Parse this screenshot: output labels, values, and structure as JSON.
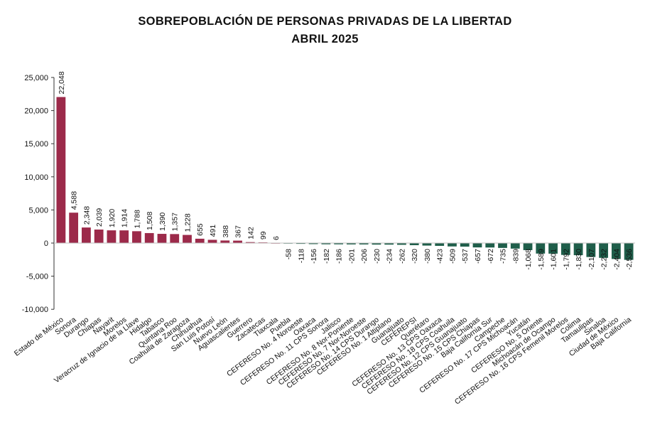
{
  "colors": {
    "positive": "#9c2a4a",
    "negative": "#1f5e4a",
    "axis": "#333333",
    "text": "#111111"
  },
  "chart_data": {
    "type": "bar",
    "title": "SOBREPOBLACIÓN DE PERSONAS PRIVADAS DE LA LIBERTAD",
    "subtitle": "ABRIL 2025",
    "xlabel": "",
    "ylabel": "",
    "ylim": [
      -10000,
      25000
    ],
    "yticks": [
      -10000,
      -5000,
      0,
      5000,
      10000,
      15000,
      20000,
      25000
    ],
    "ytick_labels": [
      "-10,000",
      "-5,000",
      "0",
      "5,000",
      "10,000",
      "15,000",
      "20,000",
      "25,000"
    ],
    "grid": false,
    "legend": "none",
    "categories": [
      "Estado de México",
      "Sonora",
      "Durango",
      "Chiapas",
      "Nayarit",
      "Morelos",
      "Veracruz de Ignacio de la Llave",
      "Hidalgo",
      "Tabasco",
      "Quintana Roo",
      "Coahuila de Zaragoza",
      "Chihuahua",
      "San Luis Potosí",
      "Nuevo León",
      "Aguascalientes",
      "Guerrero",
      "Zacatecas",
      "Tlaxcala",
      "Puebla",
      "CEFERESO No. 4 Noroeste",
      "Oaxaca",
      "CEFERESO No. 11 CPS Sonora",
      "Jalisco",
      "CEFERESO No. 8 Nor-Poniente",
      "CEFERESO No. 7 Nor-Noroeste",
      "CEFERESO No. 14 CPS Durango",
      "CEFERESO No. 1 Altiplano",
      "Guanajuato",
      "CEFEREPSI",
      "Querétaro",
      "CEFERESO No. 13 CPS Oaxaca",
      "CEFERESO No. 18 CPS Coahuila",
      "CEFERESO No. 12 CPS Guanajuato",
      "CEFERESO No. 15 CPS Chiapas",
      "Baja California Sur",
      "Campeche",
      "CEFERESO No. 17 CPS Michoacán",
      "Yucatán",
      "CEFERESO No. 5 Oriente",
      "Michoacán de Ocampo",
      "CEFERESO No. 16 CPS Femenil Morelos",
      "Colima",
      "Tamaulipas",
      "Sinaloa",
      "Ciudad de México",
      "Baja California"
    ],
    "values": [
      22048,
      4588,
      2348,
      2039,
      1920,
      1914,
      1788,
      1508,
      1390,
      1357,
      1228,
      655,
      491,
      388,
      367,
      142,
      99,
      6,
      -58,
      -118,
      -156,
      -182,
      -186,
      -201,
      -206,
      -230,
      -234,
      -262,
      -320,
      -380,
      -423,
      -509,
      -537,
      -657,
      -672,
      -735,
      -839,
      -1068,
      -1589,
      -1601,
      -1792,
      -1830,
      -2107,
      -2232,
      -2404,
      -2536
    ],
    "value_labels": [
      "22,048",
      "4,588",
      "2,348",
      "2,039",
      "1,920",
      "1,914",
      "1,788",
      "1,508",
      "1,390",
      "1,357",
      "1,228",
      "655",
      "491",
      "388",
      "367",
      "142",
      "99",
      "6",
      "-58",
      "-118",
      "-156",
      "-182",
      "-186",
      "-201",
      "-206",
      "-230",
      "-234",
      "-262",
      "-320",
      "-380",
      "-423",
      "-509",
      "-537",
      "-657",
      "-672",
      "-735",
      "-839",
      "-1,068",
      "-1,589",
      "-1,601",
      "-1,792",
      "-1,830",
      "-2,107",
      "-2,232",
      "-2,404",
      "-2,536"
    ]
  }
}
